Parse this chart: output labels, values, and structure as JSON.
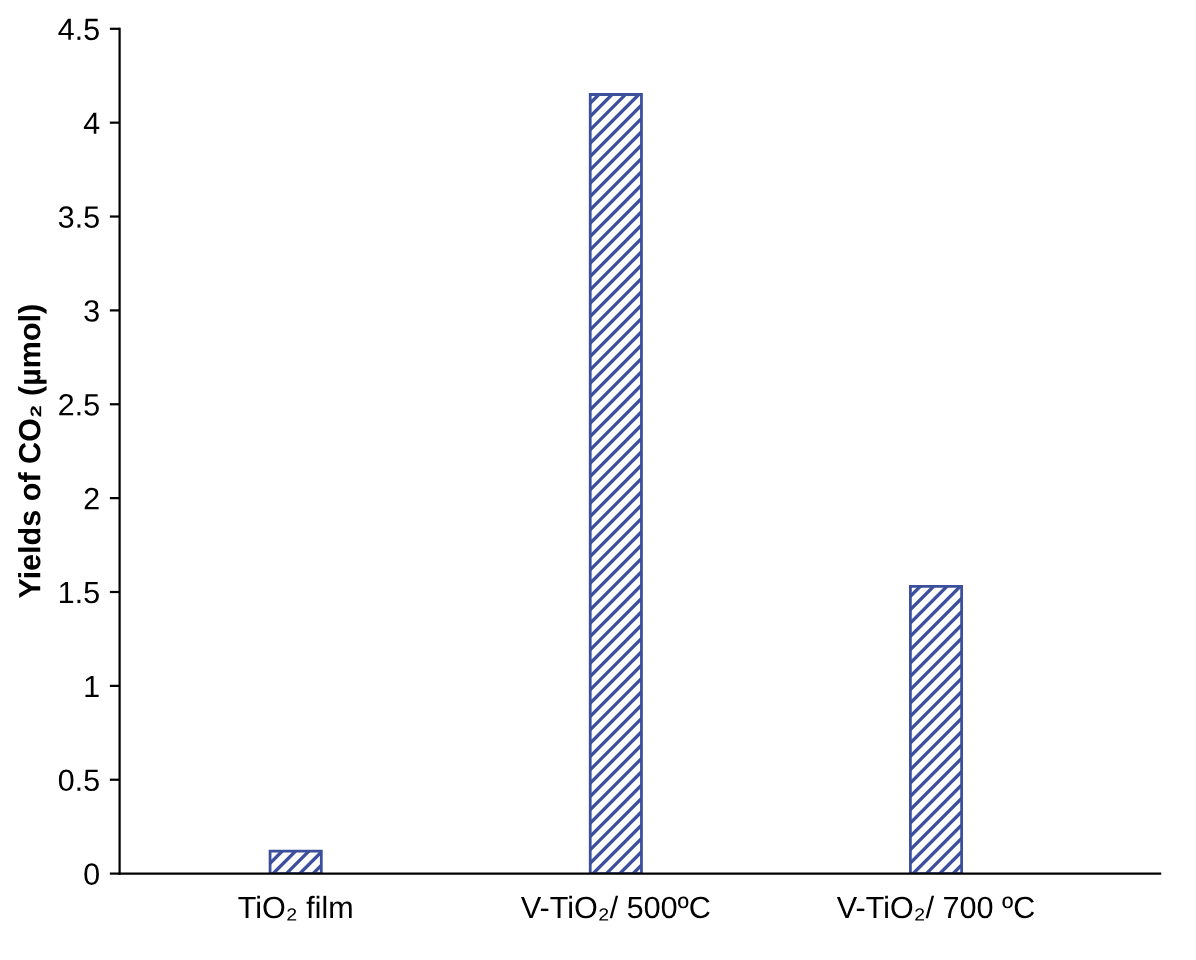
{
  "chart_data": {
    "type": "bar",
    "categories": [
      "TiO₂ film",
      "V-TiO₂/ 500ºC",
      "V-TiO₂/ 700 ºC"
    ],
    "values": [
      0.12,
      4.15,
      1.53
    ],
    "color": "#3c4f9c",
    "ylabel": "Yields of CO₂ (µmol)",
    "ylim": [
      0,
      4.5
    ],
    "yticks": [
      0,
      0.5,
      1,
      1.5,
      2,
      2.5,
      3,
      3.5,
      4,
      4.5
    ],
    "grid": false
  }
}
